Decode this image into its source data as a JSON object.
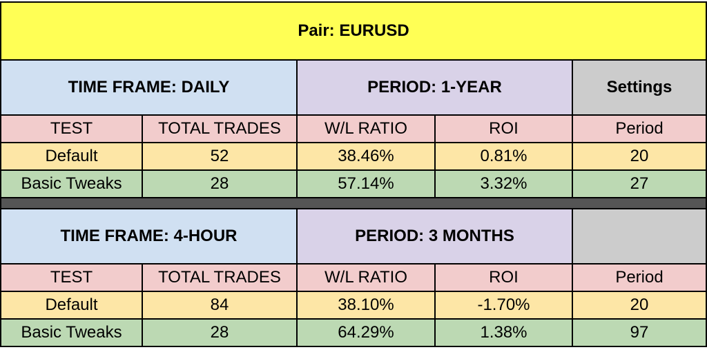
{
  "title": "Pair:  EURUSD",
  "blocks": [
    {
      "timeframe": "TIME FRAME:  DAILY",
      "period": "PERIOD: 1-YEAR",
      "settings": "Settings",
      "headers": [
        "TEST",
        "TOTAL TRADES",
        "W/L RATIO",
        "ROI",
        "Period"
      ],
      "rows": [
        [
          "Default",
          "52",
          "38.46%",
          "0.81%",
          "20"
        ],
        [
          "Basic Tweaks",
          "28",
          "57.14%",
          "3.32%",
          "27"
        ]
      ]
    },
    {
      "timeframe": "TIME FRAME:  4-HOUR",
      "period": "PERIOD: 3 MONTHS",
      "settings": "",
      "headers": [
        "TEST",
        "TOTAL TRADES",
        "W/L RATIO",
        "ROI",
        "Period"
      ],
      "rows": [
        [
          "Default",
          "84",
          "38.10%",
          "-1.70%",
          "20"
        ],
        [
          "Basic Tweaks",
          "28",
          "64.29%",
          "1.38%",
          "97"
        ]
      ]
    }
  ]
}
